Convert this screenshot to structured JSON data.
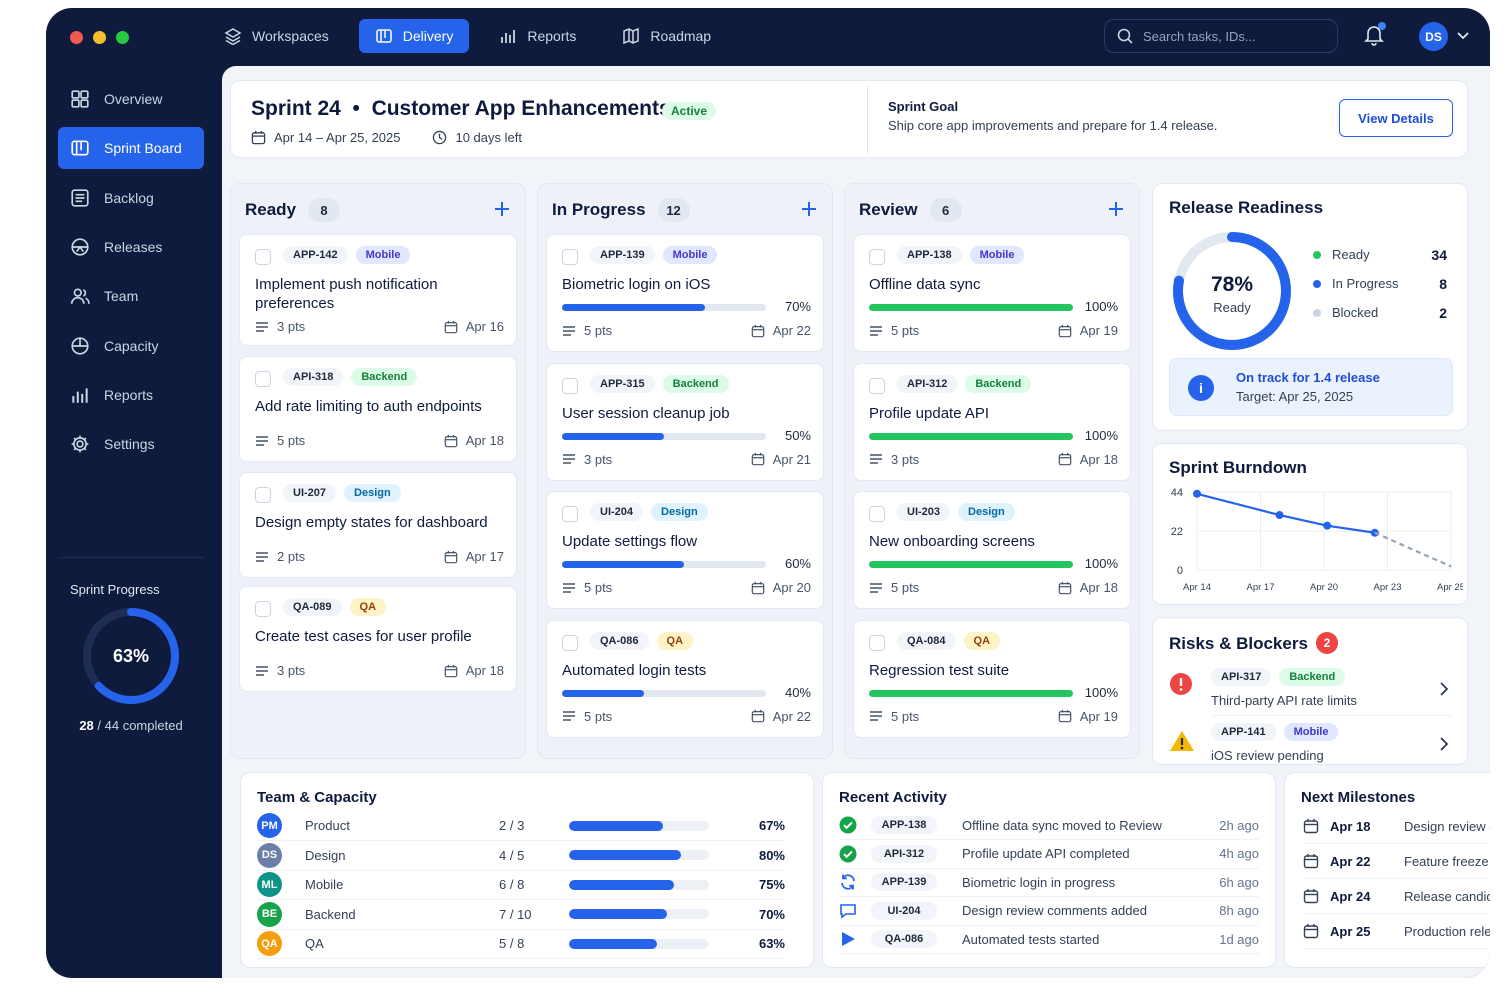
{
  "topnav": {
    "items": [
      {
        "label": "Workspaces",
        "icon": "layers-icon"
      },
      {
        "label": "Delivery",
        "icon": "board-icon",
        "active": true
      },
      {
        "label": "Reports",
        "icon": "bar-chart-icon"
      },
      {
        "label": "Roadmap",
        "icon": "map-icon"
      }
    ],
    "search_placeholder": "Search tasks, IDs...",
    "avatar": "DS"
  },
  "sidebar": {
    "items": [
      {
        "label": "Overview",
        "icon": "grid-icon"
      },
      {
        "label": "Sprint Board",
        "icon": "board-icon",
        "active": true
      },
      {
        "label": "Backlog",
        "icon": "list-icon"
      },
      {
        "label": "Releases",
        "icon": "rocket-icon"
      },
      {
        "label": "Team",
        "icon": "users-icon"
      },
      {
        "label": "Capacity",
        "icon": "gauge-icon"
      },
      {
        "label": "Reports",
        "icon": "bar-chart-icon"
      },
      {
        "label": "Settings",
        "icon": "gear-icon"
      }
    ],
    "progress": {
      "label": "Sprint Progress",
      "percent": "63%",
      "value": 0.63,
      "done": "28",
      "total": "/ 44 completed"
    }
  },
  "header": {
    "sprint": "Sprint 24",
    "name": "Customer App Enhancements",
    "status": "Active",
    "dates": "Apr 14 – Apr 25, 2025",
    "days_left": "10 days left",
    "goal_title": "Sprint Goal",
    "goal_text": "Ship core app improvements and prepare for 1.4 release.",
    "view_button": "View Details"
  },
  "columns": [
    {
      "title": "Ready",
      "count": "8",
      "tasks": [
        {
          "id": "APP-142",
          "tag": "Mobile",
          "tagclass": "t-mobile",
          "title": "Implement push notification preferences",
          "pts": "3 pts",
          "due": "Apr 16"
        },
        {
          "id": "API-318",
          "tag": "Backend",
          "tagclass": "t-backend",
          "title": "Add rate limiting to auth endpoints",
          "pts": "5 pts",
          "due": "Apr 18"
        },
        {
          "id": "UI-207",
          "tag": "Design",
          "tagclass": "t-design",
          "title": "Design empty states for dashboard",
          "pts": "2 pts",
          "due": "Apr 17"
        },
        {
          "id": "QA-089",
          "tag": "QA",
          "tagclass": "t-qa",
          "title": "Create test cases for user profile",
          "pts": "3 pts",
          "due": "Apr 18"
        }
      ]
    },
    {
      "title": "In Progress",
      "count": "12",
      "tasks": [
        {
          "id": "APP-139",
          "tag": "Mobile",
          "tagclass": "t-mobile",
          "title": "Biometric login on iOS",
          "progress": "70%",
          "value": 0.7,
          "pts": "5 pts",
          "due": "Apr 22"
        },
        {
          "id": "APP-315",
          "tag": "Backend",
          "tagclass": "t-backend",
          "title": "User session cleanup job",
          "progress": "50%",
          "value": 0.5,
          "pts": "3 pts",
          "due": "Apr 21"
        },
        {
          "id": "UI-204",
          "tag": "Design",
          "tagclass": "t-design",
          "title": "Update settings flow",
          "progress": "60%",
          "value": 0.6,
          "pts": "5 pts",
          "due": "Apr 20"
        },
        {
          "id": "QA-086",
          "tag": "QA",
          "tagclass": "t-qa",
          "title": "Automated login tests",
          "progress": "40%",
          "value": 0.4,
          "pts": "5 pts",
          "due": "Apr 22"
        }
      ]
    },
    {
      "title": "Review",
      "count": "6",
      "tasks": [
        {
          "id": "APP-138",
          "tag": "Mobile",
          "tagclass": "t-mobile",
          "title": "Offline data sync",
          "progress": "100%",
          "value": 1,
          "pts": "5 pts",
          "due": "Apr 19"
        },
        {
          "id": "API-312",
          "tag": "Backend",
          "tagclass": "t-backend",
          "title": "Profile update API",
          "progress": "100%",
          "value": 1,
          "pts": "3 pts",
          "due": "Apr 18"
        },
        {
          "id": "UI-203",
          "tag": "Design",
          "tagclass": "t-design",
          "title": "New onboarding screens",
          "progress": "100%",
          "value": 1,
          "pts": "5 pts",
          "due": "Apr 18"
        },
        {
          "id": "QA-084",
          "tag": "QA",
          "tagclass": "t-qa",
          "title": "Regression test suite",
          "progress": "100%",
          "value": 1,
          "pts": "5 pts",
          "due": "Apr 19"
        }
      ]
    }
  ],
  "release": {
    "title": "Release Readiness",
    "percent": "78%",
    "value": 0.78,
    "sub": "Ready",
    "legend": [
      {
        "label": "Ready",
        "value": "34",
        "color": "#22c55e"
      },
      {
        "label": "In Progress",
        "value": "8",
        "color": "#2563eb"
      },
      {
        "label": "Blocked",
        "value": "2",
        "color": "#cbd5e1"
      }
    ],
    "ontrack": "On track for 1.4 release",
    "target": "Target: Apr 25, 2025"
  },
  "chart_data": {
    "type": "line",
    "title": "Sprint Burndown",
    "x": [
      "Apr 14",
      "Apr 17",
      "Apr 20",
      "Apr 23",
      "Apr 25"
    ],
    "yticks": [
      "0",
      "22",
      "44"
    ],
    "ylim": [
      0,
      44
    ],
    "series": [
      {
        "points": [
          [
            0,
            43
          ],
          [
            2.6,
            31
          ],
          [
            4.1,
            25
          ],
          [
            5.6,
            21
          ]
        ],
        "style": "solid",
        "color": "#2563eb"
      },
      {
        "points": [
          [
            5.6,
            21
          ],
          [
            8,
            2
          ]
        ],
        "style": "dashed",
        "color": "#94a3b8"
      }
    ],
    "xlim": [
      0,
      8
    ]
  },
  "risks": {
    "title": "Risks & Blockers",
    "count": "2",
    "items": [
      {
        "id": "API-317",
        "tag": "Backend",
        "tagclass": "t-backend",
        "text": "Third-party API rate limits",
        "icon": "error-icon"
      },
      {
        "id": "APP-141",
        "tag": "Mobile",
        "tagclass": "t-mobile",
        "text": "iOS review pending",
        "icon": "warning-icon"
      }
    ]
  },
  "team": {
    "title": "Team & Capacity",
    "rows": [
      {
        "initials": "PM",
        "color": "#2563eb",
        "name": "Product",
        "ratio": "2 / 3",
        "pct": "67%",
        "value": 0.67
      },
      {
        "initials": "DS",
        "color": "#6b7fa8",
        "name": "Design",
        "ratio": "4 / 5",
        "pct": "80%",
        "value": 0.8
      },
      {
        "initials": "ML",
        "color": "#0d9488",
        "name": "Mobile",
        "ratio": "6 / 8",
        "pct": "75%",
        "value": 0.75
      },
      {
        "initials": "BE",
        "color": "#16a34a",
        "name": "Backend",
        "ratio": "7 / 10",
        "pct": "70%",
        "value": 0.7
      },
      {
        "initials": "QA",
        "color": "#f59e0b",
        "name": "QA",
        "ratio": "5 / 8",
        "pct": "63%",
        "value": 0.63
      }
    ]
  },
  "activity": {
    "title": "Recent Activity",
    "rows": [
      {
        "icon": "check-circle-icon",
        "id": "APP-138",
        "text": "Offline data sync moved to Review",
        "time": "2h ago"
      },
      {
        "icon": "check-circle-icon",
        "id": "API-312",
        "text": "Profile update API completed",
        "time": "4h ago"
      },
      {
        "icon": "refresh-icon",
        "id": "APP-139",
        "text": "Biometric login in progress",
        "time": "6h ago"
      },
      {
        "icon": "comment-icon",
        "id": "UI-204",
        "text": "Design review comments added",
        "time": "8h ago"
      },
      {
        "icon": "play-icon",
        "id": "QA-086",
        "text": "Automated tests started",
        "time": "1d ago"
      }
    ]
  },
  "milestones": {
    "title": "Next Milestones",
    "rows": [
      {
        "date": "Apr 18",
        "text": "Design review complete",
        "state": "done"
      },
      {
        "date": "Apr 22",
        "text": "Feature freeze",
        "state": "current"
      },
      {
        "date": "Apr 24",
        "text": "Release candidate",
        "state": "pending"
      },
      {
        "date": "Apr 25",
        "text": "Production release",
        "state": "pending"
      }
    ]
  }
}
